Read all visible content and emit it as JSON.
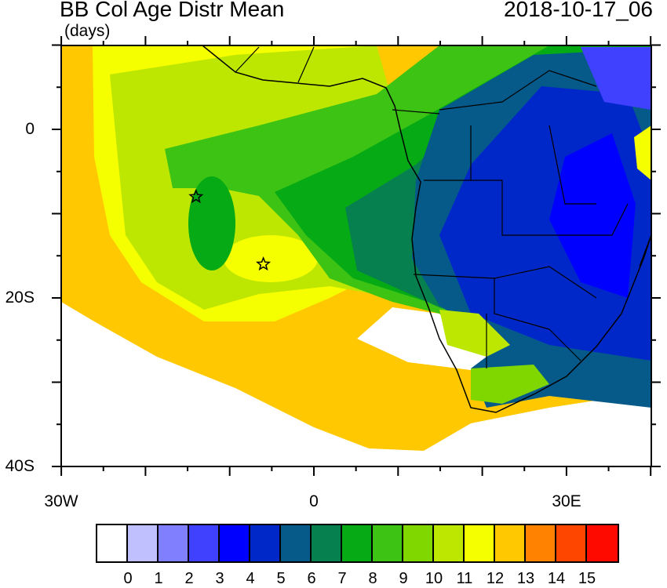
{
  "title": "BB Col Age Distr Mean",
  "units": "(days)",
  "date": "2018-10-17_06",
  "x_ticks": [
    "30W",
    "0",
    "30E"
  ],
  "y_ticks": [
    "0",
    "20S",
    "40S"
  ],
  "colorbar": {
    "labels": [
      "0",
      "1",
      "2",
      "3",
      "4",
      "5",
      "6",
      "7",
      "8",
      "9",
      "10",
      "11",
      "12",
      "13",
      "14",
      "15"
    ],
    "colors": [
      "#ffffff",
      "#c0c0ff",
      "#8080ff",
      "#4040ff",
      "#0000ff",
      "#0028c8",
      "#055a8a",
      "#078050",
      "#05aa14",
      "#3cc314",
      "#80d700",
      "#bde600",
      "#f5ff00",
      "#ffc800",
      "#ff8200",
      "#ff4600",
      "#ff0a00"
    ]
  },
  "markers": [
    {
      "symbol": "star",
      "lon": -14,
      "lat": -8
    },
    {
      "symbol": "star",
      "lon": -6,
      "lat": -16
    }
  ]
}
